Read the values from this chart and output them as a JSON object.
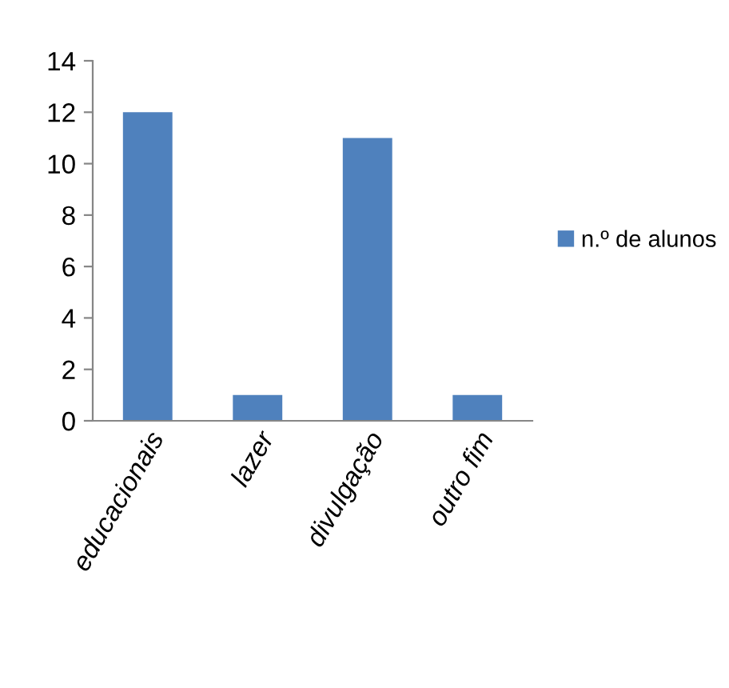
{
  "chart_data": {
    "type": "bar",
    "categories": [
      "educacionais",
      "lazer",
      "divulgação",
      "outro fim"
    ],
    "series": [
      {
        "name": "n.º de alunos",
        "color": "#4f81bd",
        "values": [
          12,
          1,
          11,
          1
        ]
      }
    ],
    "ylim": [
      0,
      14
    ],
    "yticks": [
      0,
      2,
      4,
      6,
      8,
      10,
      12,
      14
    ],
    "grid": false,
    "legend": "right"
  }
}
